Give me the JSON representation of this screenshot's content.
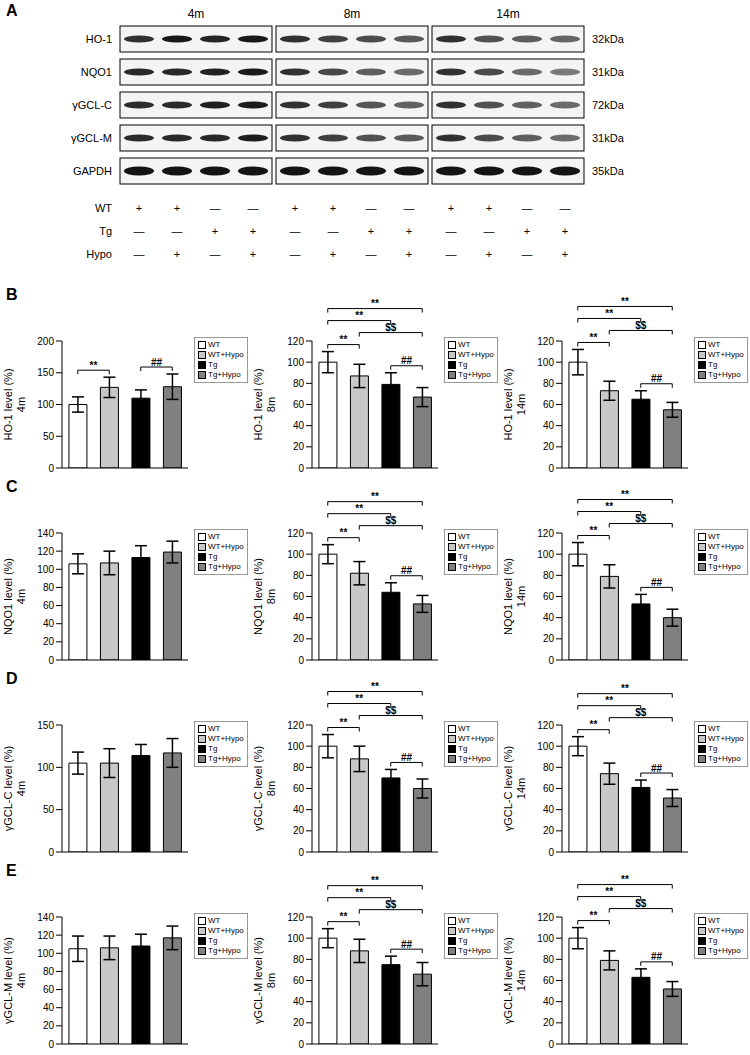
{
  "panels": [
    "A",
    "B",
    "C",
    "D",
    "E"
  ],
  "blot": {
    "ages": [
      "4m",
      "8m",
      "14m"
    ],
    "proteins": [
      {
        "name": "HO-1",
        "size": "32kDa"
      },
      {
        "name": "NQO1",
        "size": "31kDa"
      },
      {
        "name": "γGCL-C",
        "size": "72kDa"
      },
      {
        "name": "γGCL-M",
        "size": "31kDa"
      },
      {
        "name": "GAPDH",
        "size": "35kDa"
      }
    ],
    "conditions": [
      {
        "name": "WT",
        "signs": [
          "+",
          "+",
          "—",
          "—",
          "+",
          "+",
          "—",
          "—",
          "+",
          "+",
          "—",
          "—"
        ]
      },
      {
        "name": "Tg",
        "signs": [
          "—",
          "—",
          "+",
          "+",
          "—",
          "—",
          "+",
          "+",
          "—",
          "—",
          "+",
          "+"
        ]
      },
      {
        "name": "Hypo",
        "signs": [
          "—",
          "+",
          "—",
          "+",
          "—",
          "+",
          "—",
          "+",
          "—",
          "+",
          "—",
          "+"
        ]
      }
    ]
  },
  "chart_data": [
    {
      "type": "bar",
      "ylabel": "HO-1 level (%)",
      "subtitle": "4m",
      "categories": [
        "WT",
        "WT+Hypo",
        "Tg",
        "Tg+Hypo"
      ],
      "values": [
        100,
        127,
        110,
        128
      ],
      "errors": [
        12,
        16,
        13,
        20
      ],
      "colors": [
        "#ffffff",
        "#c8c8c8",
        "#000000",
        "#808080"
      ],
      "ylim": [
        0,
        200
      ],
      "yticks": [
        0,
        50,
        100,
        150,
        200
      ],
      "tick_labels": "y",
      "legend": "right",
      "annotations": [
        {
          "from": "WT",
          "to": "WT+Hypo",
          "label": "**"
        },
        {
          "from": "Tg",
          "to": "Tg+Hypo",
          "label": "##"
        }
      ]
    },
    {
      "type": "bar",
      "ylabel": "HO-1 level (%)",
      "subtitle": "8m",
      "categories": [
        "WT",
        "WT+Hypo",
        "Tg",
        "Tg+Hypo"
      ],
      "values": [
        100,
        87,
        79,
        67
      ],
      "errors": [
        10,
        11,
        11,
        9
      ],
      "colors": [
        "#ffffff",
        "#c8c8c8",
        "#000000",
        "#808080"
      ],
      "ylim": [
        0,
        120
      ],
      "yticks": [
        0,
        20,
        40,
        60,
        80,
        100,
        120
      ],
      "tick_labels": "y",
      "legend": "right",
      "annotations": [
        {
          "from": "WT",
          "to": "WT+Hypo",
          "label": "**"
        },
        {
          "from": "Tg",
          "to": "Tg+Hypo",
          "label": "##"
        },
        {
          "from": "WT+Hypo",
          "to": "Tg+Hypo",
          "label": "$$"
        },
        {
          "from": "WT",
          "to": "Tg",
          "label": "**"
        },
        {
          "from": "WT",
          "to": "Tg+Hypo",
          "label": "**"
        }
      ]
    },
    {
      "type": "bar",
      "ylabel": "HO-1 level (%)",
      "subtitle": "14m",
      "categories": [
        "WT",
        "WT+Hypo",
        "Tg",
        "Tg+Hypo"
      ],
      "values": [
        100,
        73,
        65,
        55
      ],
      "errors": [
        12,
        9,
        8,
        7
      ],
      "colors": [
        "#ffffff",
        "#c8c8c8",
        "#000000",
        "#808080"
      ],
      "ylim": [
        0,
        120
      ],
      "yticks": [
        0,
        20,
        40,
        60,
        80,
        100,
        120
      ],
      "tick_labels": "y",
      "legend": "right",
      "annotations": [
        {
          "from": "WT",
          "to": "WT+Hypo",
          "label": "**"
        },
        {
          "from": "Tg",
          "to": "Tg+Hypo",
          "label": "##"
        },
        {
          "from": "WT+Hypo",
          "to": "Tg+Hypo",
          "label": "$$"
        },
        {
          "from": "WT",
          "to": "Tg",
          "label": "**"
        },
        {
          "from": "WT",
          "to": "Tg+Hypo",
          "label": "**"
        }
      ]
    },
    {
      "type": "bar",
      "ylabel": "NQO1 level (%)",
      "subtitle": "4m",
      "categories": [
        "WT",
        "WT+Hypo",
        "Tg",
        "Tg+Hypo"
      ],
      "values": [
        106,
        107,
        113,
        119
      ],
      "errors": [
        11,
        13,
        13,
        12
      ],
      "colors": [
        "#ffffff",
        "#c8c8c8",
        "#000000",
        "#808080"
      ],
      "ylim": [
        0,
        140
      ],
      "yticks": [
        0,
        20,
        40,
        60,
        80,
        100,
        120,
        140
      ],
      "tick_labels": "y",
      "legend": "right"
    },
    {
      "type": "bar",
      "ylabel": "NQO1 level (%)",
      "subtitle": "8m",
      "categories": [
        "WT",
        "WT+Hypo",
        "Tg",
        "Tg+Hypo"
      ],
      "values": [
        100,
        82,
        64,
        53
      ],
      "errors": [
        9,
        11,
        9,
        8
      ],
      "colors": [
        "#ffffff",
        "#c8c8c8",
        "#000000",
        "#808080"
      ],
      "ylim": [
        0,
        120
      ],
      "yticks": [
        0,
        20,
        40,
        60,
        80,
        100,
        120
      ],
      "tick_labels": "y",
      "legend": "right",
      "annotations": [
        {
          "from": "WT",
          "to": "WT+Hypo",
          "label": "**"
        },
        {
          "from": "Tg",
          "to": "Tg+Hypo",
          "label": "##"
        },
        {
          "from": "WT+Hypo",
          "to": "Tg+Hypo",
          "label": "$$"
        },
        {
          "from": "WT",
          "to": "Tg",
          "label": "**"
        },
        {
          "from": "WT",
          "to": "Tg+Hypo",
          "label": "**"
        }
      ]
    },
    {
      "type": "bar",
      "ylabel": "NQO1 level (%)",
      "subtitle": "14m",
      "categories": [
        "WT",
        "WT+Hypo",
        "Tg",
        "Tg+Hypo"
      ],
      "values": [
        100,
        79,
        53,
        40
      ],
      "errors": [
        11,
        11,
        9,
        8
      ],
      "colors": [
        "#ffffff",
        "#c8c8c8",
        "#000000",
        "#808080"
      ],
      "ylim": [
        0,
        120
      ],
      "yticks": [
        0,
        20,
        40,
        60,
        80,
        100,
        120
      ],
      "tick_labels": "y",
      "legend": "right",
      "annotations": [
        {
          "from": "WT",
          "to": "WT+Hypo",
          "label": "**"
        },
        {
          "from": "Tg",
          "to": "Tg+Hypo",
          "label": "##"
        },
        {
          "from": "WT+Hypo",
          "to": "Tg+Hypo",
          "label": "$$"
        },
        {
          "from": "WT",
          "to": "Tg",
          "label": "**"
        },
        {
          "from": "WT",
          "to": "Tg+Hypo",
          "label": "**"
        }
      ]
    },
    {
      "type": "bar",
      "ylabel": "γGCL-C level (%)",
      "subtitle": "4m",
      "categories": [
        "WT",
        "WT+Hypo",
        "Tg",
        "Tg+Hypo"
      ],
      "values": [
        105,
        105,
        114,
        117
      ],
      "errors": [
        13,
        17,
        13,
        17
      ],
      "colors": [
        "#ffffff",
        "#c8c8c8",
        "#000000",
        "#808080"
      ],
      "ylim": [
        0,
        150
      ],
      "yticks": [
        0,
        50,
        100,
        150
      ],
      "tick_labels": "y",
      "legend": "right"
    },
    {
      "type": "bar",
      "ylabel": "γGCL-C level (%)",
      "subtitle": "8m",
      "categories": [
        "WT",
        "WT+Hypo",
        "Tg",
        "Tg+Hypo"
      ],
      "values": [
        100,
        88,
        70,
        60
      ],
      "errors": [
        11,
        12,
        8,
        9
      ],
      "colors": [
        "#ffffff",
        "#c8c8c8",
        "#000000",
        "#808080"
      ],
      "ylim": [
        0,
        120
      ],
      "yticks": [
        0,
        20,
        40,
        60,
        80,
        100,
        120
      ],
      "tick_labels": "y",
      "legend": "right",
      "annotations": [
        {
          "from": "WT",
          "to": "WT+Hypo",
          "label": "**"
        },
        {
          "from": "Tg",
          "to": "Tg+Hypo",
          "label": "##"
        },
        {
          "from": "WT+Hypo",
          "to": "Tg+Hypo",
          "label": "$$"
        },
        {
          "from": "WT",
          "to": "Tg",
          "label": "**"
        },
        {
          "from": "WT",
          "to": "Tg+Hypo",
          "label": "**"
        }
      ]
    },
    {
      "type": "bar",
      "ylabel": "γGCL-C level (%)",
      "subtitle": "14m",
      "categories": [
        "WT",
        "WT+Hypo",
        "Tg",
        "Tg+Hypo"
      ],
      "values": [
        100,
        74,
        61,
        51
      ],
      "errors": [
        9,
        10,
        7,
        8
      ],
      "colors": [
        "#ffffff",
        "#c8c8c8",
        "#000000",
        "#808080"
      ],
      "ylim": [
        0,
        120
      ],
      "yticks": [
        0,
        20,
        40,
        60,
        80,
        100,
        120
      ],
      "tick_labels": "y",
      "legend": "right",
      "annotations": [
        {
          "from": "WT",
          "to": "WT+Hypo",
          "label": "**"
        },
        {
          "from": "Tg",
          "to": "Tg+Hypo",
          "label": "##"
        },
        {
          "from": "WT+Hypo",
          "to": "Tg+Hypo",
          "label": "$$"
        },
        {
          "from": "WT",
          "to": "Tg",
          "label": "**"
        },
        {
          "from": "WT",
          "to": "Tg+Hypo",
          "label": "**"
        }
      ]
    },
    {
      "type": "bar",
      "ylabel": "γGCL-M level (%)",
      "subtitle": "4m",
      "categories": [
        "WT",
        "WT+Hypo",
        "Tg",
        "Tg+Hypo"
      ],
      "values": [
        105,
        106,
        108,
        117
      ],
      "errors": [
        14,
        13,
        13,
        13
      ],
      "colors": [
        "#ffffff",
        "#c8c8c8",
        "#000000",
        "#808080"
      ],
      "ylim": [
        0,
        140
      ],
      "yticks": [
        0,
        20,
        40,
        60,
        80,
        100,
        120,
        140
      ],
      "tick_labels": "y",
      "legend": "right"
    },
    {
      "type": "bar",
      "ylabel": "γGCL-M level (%)",
      "subtitle": "8m",
      "categories": [
        "WT",
        "WT+Hypo",
        "Tg",
        "Tg+Hypo"
      ],
      "values": [
        100,
        88,
        75,
        66
      ],
      "errors": [
        9,
        11,
        8,
        11
      ],
      "colors": [
        "#ffffff",
        "#c8c8c8",
        "#000000",
        "#808080"
      ],
      "ylim": [
        0,
        120
      ],
      "yticks": [
        0,
        20,
        40,
        60,
        80,
        100,
        120
      ],
      "tick_labels": "y",
      "legend": "right",
      "annotations": [
        {
          "from": "WT",
          "to": "WT+Hypo",
          "label": "**"
        },
        {
          "from": "Tg",
          "to": "Tg+Hypo",
          "label": "##"
        },
        {
          "from": "WT+Hypo",
          "to": "Tg+Hypo",
          "label": "$$"
        },
        {
          "from": "WT",
          "to": "Tg",
          "label": "**"
        },
        {
          "from": "WT",
          "to": "Tg+Hypo",
          "label": "**"
        }
      ]
    },
    {
      "type": "bar",
      "ylabel": "γGCL-M level (%)",
      "subtitle": "14m",
      "categories": [
        "WT",
        "WT+Hypo",
        "Tg",
        "Tg+Hypo"
      ],
      "values": [
        100,
        79,
        63,
        52
      ],
      "errors": [
        10,
        9,
        8,
        7
      ],
      "colors": [
        "#ffffff",
        "#c8c8c8",
        "#000000",
        "#808080"
      ],
      "ylim": [
        0,
        120
      ],
      "yticks": [
        0,
        20,
        40,
        60,
        80,
        100,
        120
      ],
      "tick_labels": "y",
      "legend": "right",
      "annotations": [
        {
          "from": "WT",
          "to": "WT+Hypo",
          "label": "**"
        },
        {
          "from": "Tg",
          "to": "Tg+Hypo",
          "label": "##"
        },
        {
          "from": "WT+Hypo",
          "to": "Tg+Hypo",
          "label": "$$"
        },
        {
          "from": "WT",
          "to": "Tg",
          "label": "**"
        },
        {
          "from": "WT",
          "to": "Tg+Hypo",
          "label": "**"
        }
      ]
    }
  ]
}
